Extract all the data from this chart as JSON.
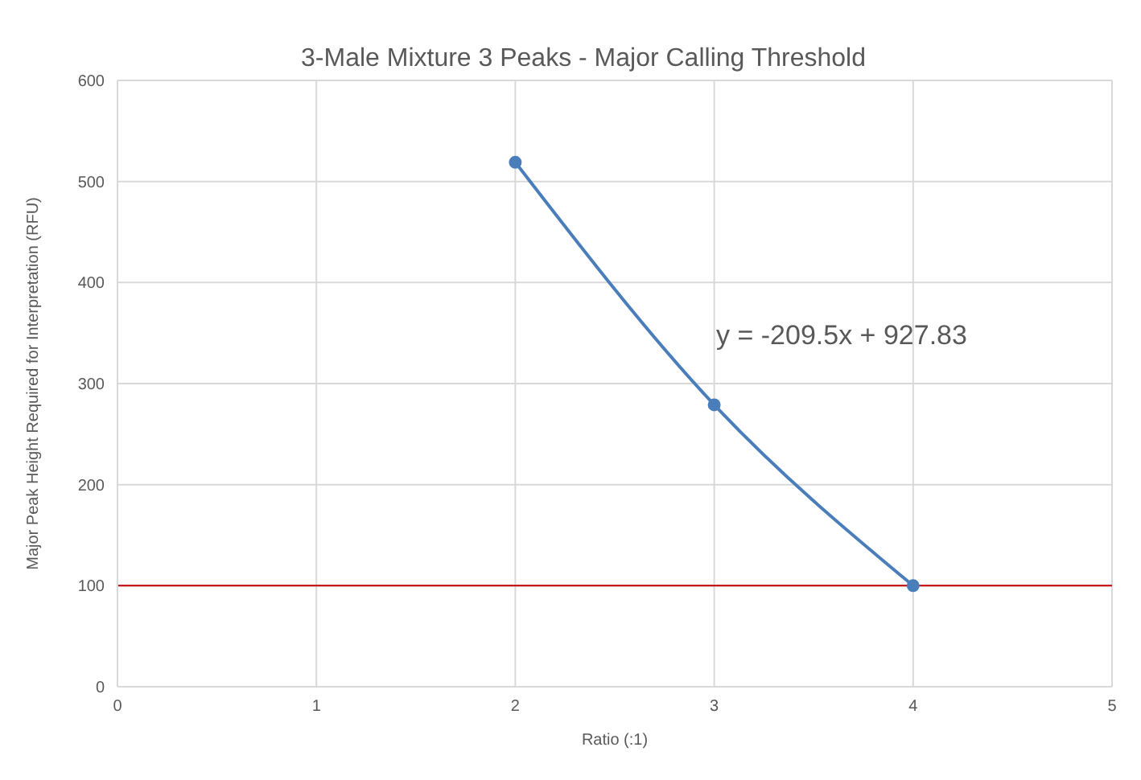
{
  "chart_data": {
    "type": "line",
    "title": "3-Male Mixture 3 Peaks - Major Calling Threshold",
    "xlabel": "Ratio (:1)",
    "ylabel": "Major Peak Height Required for Interpretation (RFU)",
    "x": [
      2,
      3,
      4
    ],
    "series": [
      {
        "color": "#4a7ebb",
        "values": [
          519,
          279,
          100
        ]
      }
    ],
    "xlim": [
      0,
      5
    ],
    "xticks": [
      0,
      1,
      2,
      3,
      4,
      5
    ],
    "ylim": [
      0,
      600
    ],
    "yticks": [
      0,
      100,
      200,
      300,
      400,
      500,
      600
    ],
    "grid": true,
    "marker": "circle",
    "line_style": "solid",
    "ref_lines": [
      {
        "axis": "y",
        "value": 100,
        "color": "#c00000"
      }
    ],
    "annotations": [
      "y = -209.5x + 927.83"
    ]
  }
}
